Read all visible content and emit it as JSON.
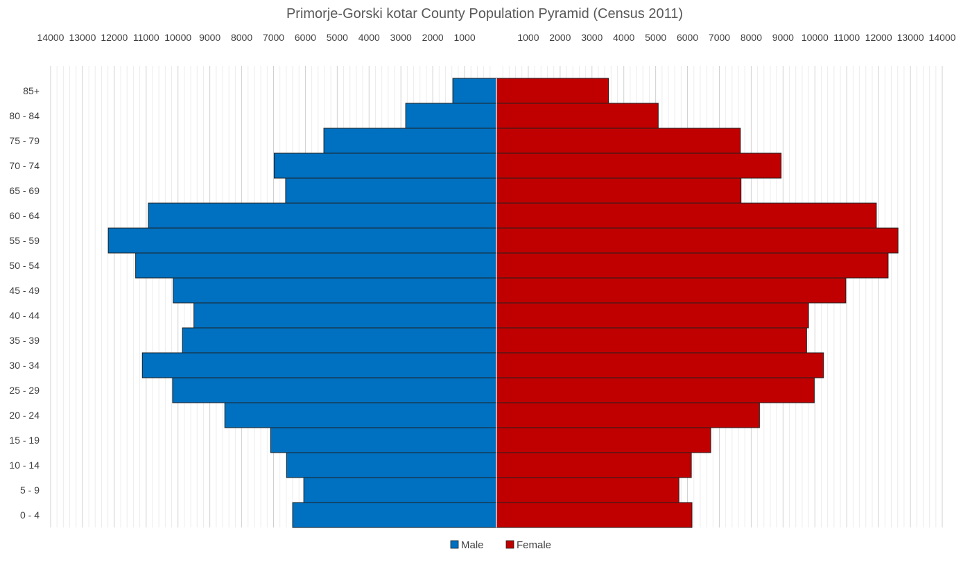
{
  "chart_data": {
    "type": "bar",
    "orientation": "horizontal-pyramid",
    "title": "Primorje-Gorski kotar County Population Pyramid (Census 2011)",
    "categories": [
      "85+",
      "80 - 84",
      "75 - 79",
      "70 - 74",
      "65 - 69",
      "60 - 64",
      "55 - 59",
      "50 - 54",
      "45 - 49",
      "40 - 44",
      "35 - 39",
      "30 - 34",
      "25 - 29",
      "20 - 24",
      "15 - 19",
      "10 - 14",
      "5 - 9",
      "0 - 4"
    ],
    "series": [
      {
        "name": "Male",
        "color": "#0070C0",
        "values": [
          1370,
          2850,
          5420,
          6980,
          6620,
          10930,
          12190,
          11330,
          10150,
          9500,
          9860,
          11120,
          10170,
          8530,
          7090,
          6590,
          6050,
          6400
        ]
      },
      {
        "name": "Female",
        "color": "#C00000",
        "values": [
          3520,
          5080,
          7660,
          8940,
          7680,
          11930,
          12610,
          12300,
          10970,
          9800,
          9740,
          10270,
          9980,
          8260,
          6730,
          6120,
          5730,
          6140
        ]
      }
    ],
    "x_tick_labels_left": [
      "14000",
      "13000",
      "12000",
      "11000",
      "10000",
      "9000",
      "8000",
      "7000",
      "6000",
      "5000",
      "4000",
      "3000",
      "2000",
      "1000"
    ],
    "x_tick_labels_right": [
      "1000",
      "2000",
      "3000",
      "4000",
      "5000",
      "6000",
      "7000",
      "8000",
      "9000",
      "10000",
      "11000",
      "12000",
      "13000",
      "14000"
    ],
    "xlim": [
      -14000,
      14000
    ],
    "grid": true,
    "legend_position": "bottom"
  }
}
